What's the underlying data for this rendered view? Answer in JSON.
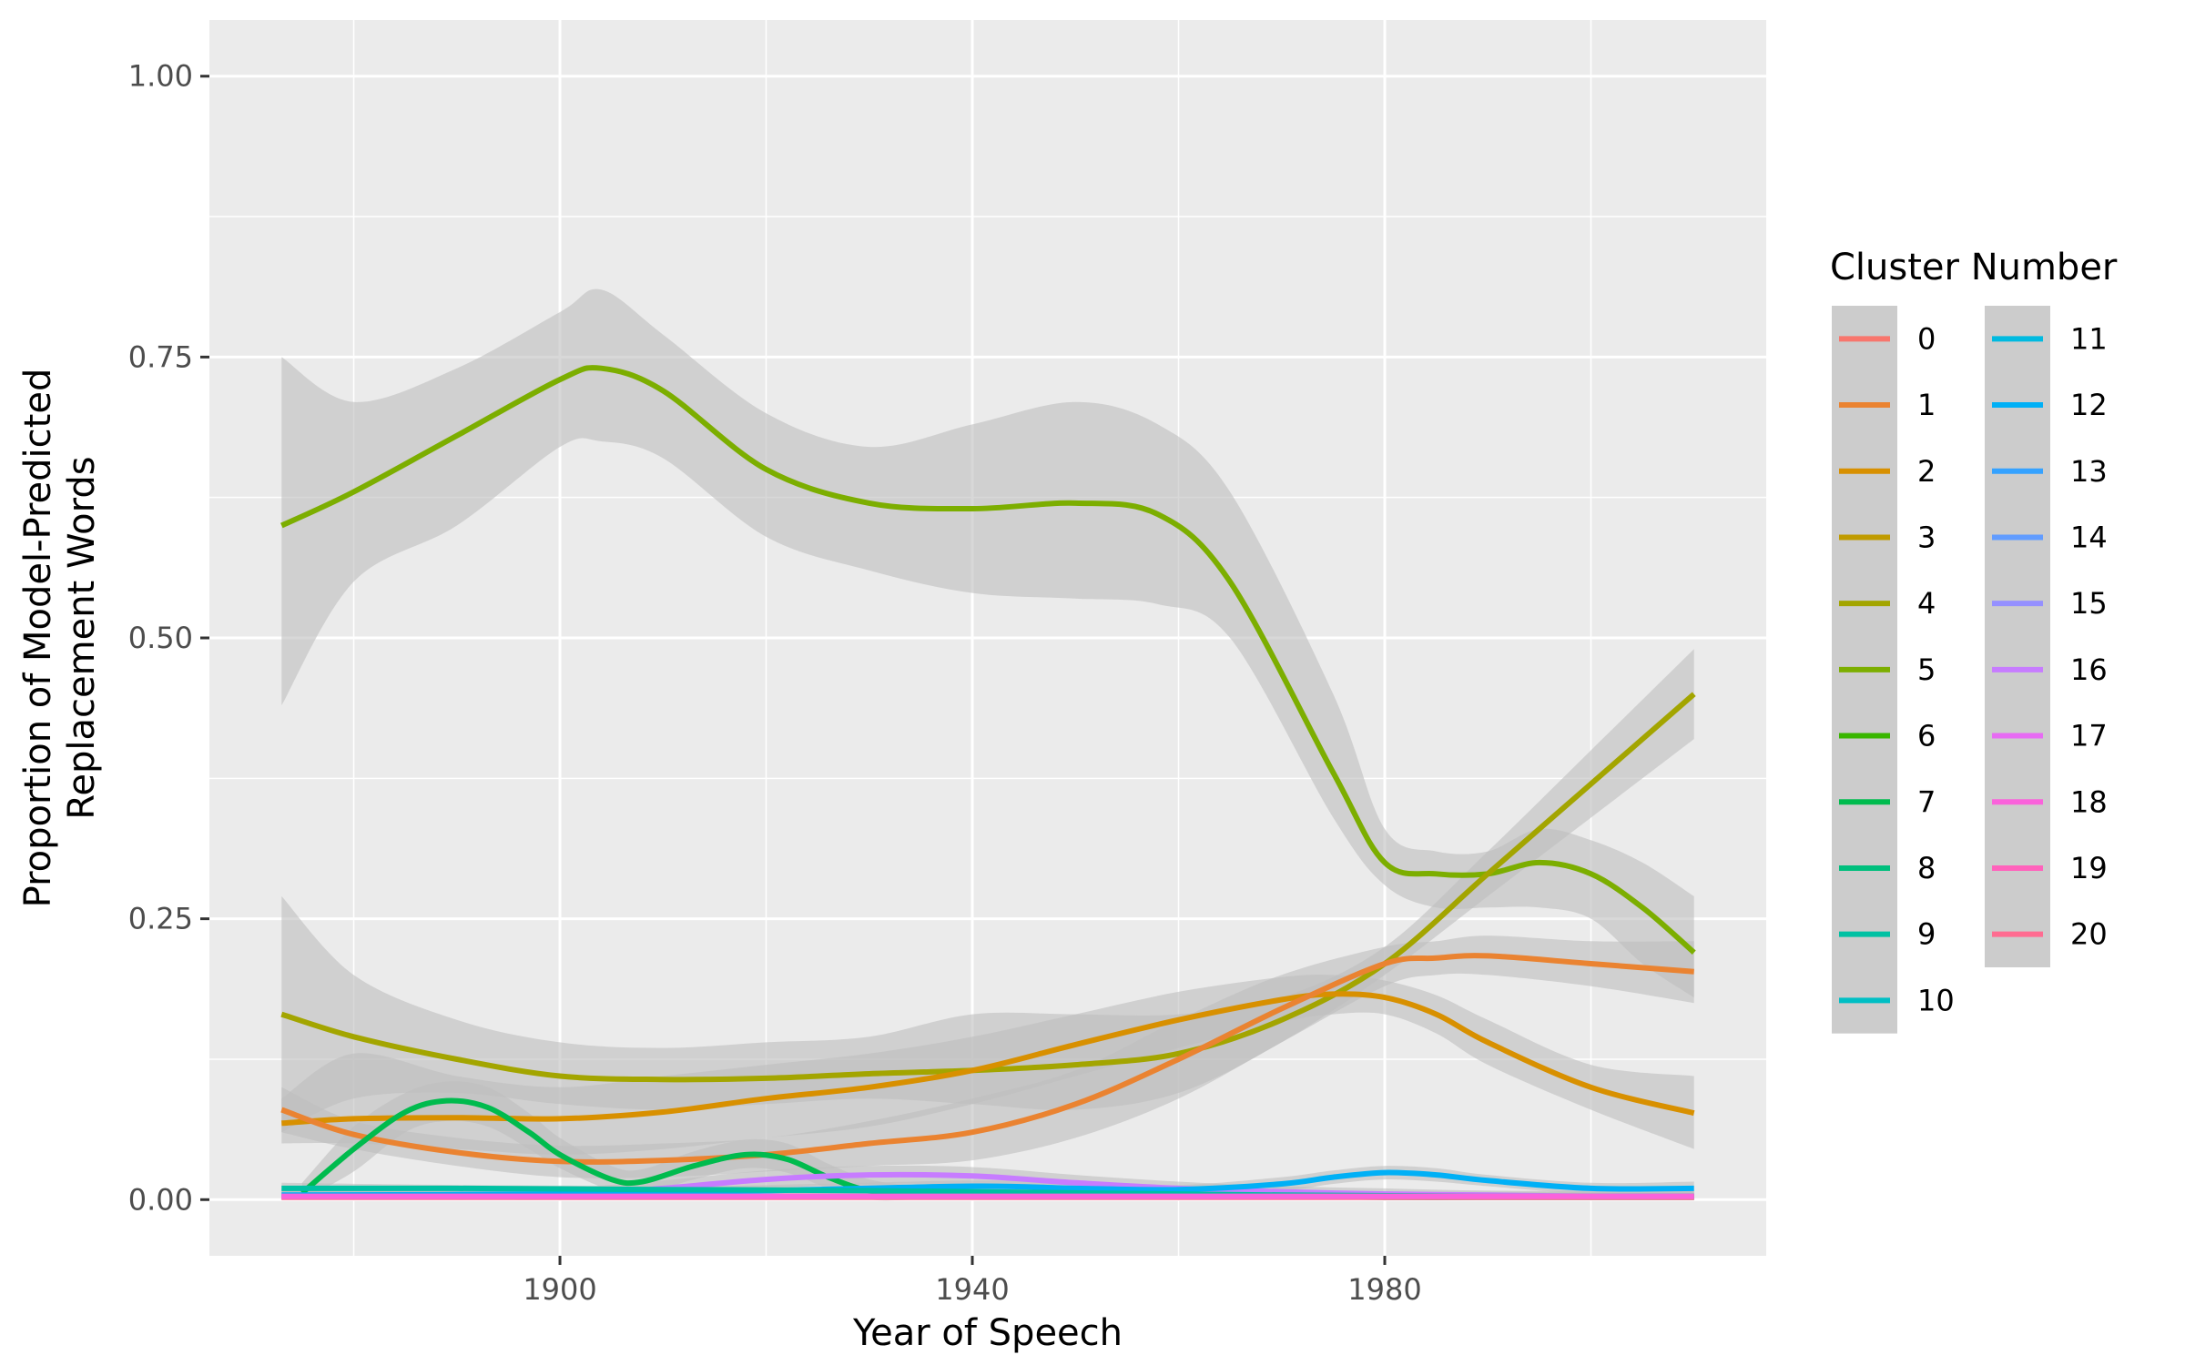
{
  "chart_data": {
    "type": "line",
    "title": "",
    "xlabel": "Year of Speech",
    "ylabel": [
      "Proportion of Model-Predicted",
      "Replacement Words"
    ],
    "xlim": [
      1866,
      2017
    ],
    "ylim": [
      -0.05,
      1.05
    ],
    "x_ticks": [
      1900,
      1940,
      1980
    ],
    "y_ticks": [
      0.0,
      0.25,
      0.5,
      0.75,
      1.0
    ],
    "y_tick_labels": [
      "0.00",
      "0.25",
      "0.50",
      "0.75",
      "1.00"
    ],
    "grid": true,
    "panel_background": "#ebebeb",
    "confidence_band_color": "#bebebe",
    "legend": {
      "title": "Cluster Number",
      "position": "right",
      "columns": 2,
      "entries": [
        {
          "label": "0",
          "color": "#F8766D"
        },
        {
          "label": "1",
          "color": "#EA8331"
        },
        {
          "label": "2",
          "color": "#D89000"
        },
        {
          "label": "3",
          "color": "#C09B00"
        },
        {
          "label": "4",
          "color": "#A3A500"
        },
        {
          "label": "5",
          "color": "#7CAE00"
        },
        {
          "label": "6",
          "color": "#39B600"
        },
        {
          "label": "7",
          "color": "#00BB4E"
        },
        {
          "label": "8",
          "color": "#00BF7D"
        },
        {
          "label": "9",
          "color": "#00C1A3"
        },
        {
          "label": "10",
          "color": "#00BFC4"
        },
        {
          "label": "11",
          "color": "#00BAE0"
        },
        {
          "label": "12",
          "color": "#00B0F6"
        },
        {
          "label": "13",
          "color": "#35A2FF"
        },
        {
          "label": "14",
          "color": "#619CFF"
        },
        {
          "label": "15",
          "color": "#9590FF"
        },
        {
          "label": "16",
          "color": "#C77CFF"
        },
        {
          "label": "17",
          "color": "#E76BF3"
        },
        {
          "label": "18",
          "color": "#FA62DB"
        },
        {
          "label": "19",
          "color": "#FF62BC"
        },
        {
          "label": "20",
          "color": "#FF6C91"
        }
      ]
    },
    "series": [
      {
        "cluster": "5",
        "color": "#7CAE00",
        "x": [
          1873,
          1880,
          1890,
          1900,
          1904,
          1910,
          1920,
          1930,
          1940,
          1950,
          1958,
          1965,
          1975,
          1980,
          1985,
          1990,
          1995,
          2000,
          2005,
          2010
        ],
        "y": [
          0.6,
          0.63,
          0.68,
          0.73,
          0.74,
          0.72,
          0.65,
          0.62,
          0.615,
          0.62,
          0.61,
          0.55,
          0.38,
          0.3,
          0.29,
          0.29,
          0.3,
          0.29,
          0.26,
          0.22
        ],
        "lower": [
          0.44,
          0.55,
          0.6,
          0.67,
          0.675,
          0.66,
          0.59,
          0.56,
          0.54,
          0.535,
          0.53,
          0.5,
          0.34,
          0.28,
          0.26,
          0.26,
          0.26,
          0.25,
          0.21,
          0.18
        ],
        "upper": [
          0.75,
          0.71,
          0.74,
          0.79,
          0.81,
          0.77,
          0.7,
          0.67,
          0.69,
          0.71,
          0.69,
          0.63,
          0.45,
          0.33,
          0.31,
          0.31,
          0.33,
          0.32,
          0.3,
          0.27
        ]
      },
      {
        "cluster": "4",
        "color": "#A3A500",
        "x": [
          1873,
          1880,
          1890,
          1900,
          1910,
          1920,
          1930,
          1940,
          1950,
          1960,
          1970,
          1980,
          1990,
          2000,
          2010
        ],
        "y": [
          0.165,
          0.145,
          0.125,
          0.11,
          0.107,
          0.108,
          0.112,
          0.115,
          0.12,
          0.13,
          0.16,
          0.21,
          0.29,
          0.37,
          0.45
        ],
        "lower": [
          0.06,
          0.09,
          0.095,
          0.085,
          0.08,
          0.085,
          0.09,
          0.085,
          0.08,
          0.095,
          0.14,
          0.2,
          0.27,
          0.34,
          0.41
        ],
        "upper": [
          0.27,
          0.2,
          0.16,
          0.14,
          0.135,
          0.14,
          0.145,
          0.165,
          0.165,
          0.165,
          0.18,
          0.225,
          0.31,
          0.4,
          0.49
        ]
      },
      {
        "cluster": "2",
        "color": "#D89000",
        "x": [
          1873,
          1880,
          1890,
          1900,
          1910,
          1920,
          1930,
          1940,
          1950,
          1960,
          1970,
          1975,
          1980,
          1985,
          1990,
          2000,
          2010
        ],
        "y": [
          0.068,
          0.072,
          0.073,
          0.072,
          0.078,
          0.09,
          0.1,
          0.115,
          0.138,
          0.16,
          0.178,
          0.183,
          0.18,
          0.165,
          0.14,
          0.1,
          0.077
        ],
        "lower": [
          0.05,
          0.05,
          0.045,
          0.04,
          0.045,
          0.055,
          0.065,
          0.085,
          0.11,
          0.135,
          0.158,
          0.165,
          0.165,
          0.148,
          0.12,
          0.08,
          0.045
        ],
        "upper": [
          0.09,
          0.13,
          0.11,
          0.1,
          0.11,
          0.12,
          0.13,
          0.145,
          0.165,
          0.185,
          0.198,
          0.2,
          0.195,
          0.182,
          0.16,
          0.12,
          0.11
        ]
      },
      {
        "cluster": "1",
        "color": "#EA8331",
        "x": [
          1873,
          1880,
          1890,
          1900,
          1910,
          1920,
          1930,
          1940,
          1950,
          1960,
          1970,
          1980,
          1985,
          1990,
          2000,
          2010
        ],
        "y": [
          0.08,
          0.058,
          0.042,
          0.034,
          0.035,
          0.04,
          0.05,
          0.06,
          0.085,
          0.125,
          0.17,
          0.21,
          0.215,
          0.217,
          0.21,
          0.203
        ],
        "lower": [
          0.06,
          0.045,
          0.03,
          0.02,
          0.02,
          0.025,
          0.03,
          0.035,
          0.055,
          0.09,
          0.14,
          0.19,
          0.2,
          0.2,
          0.19,
          0.175
        ],
        "upper": [
          0.1,
          0.07,
          0.055,
          0.048,
          0.05,
          0.055,
          0.07,
          0.09,
          0.115,
          0.16,
          0.2,
          0.225,
          0.23,
          0.235,
          0.23,
          0.23
        ]
      },
      {
        "cluster": "7",
        "color": "#00BB4E",
        "x": [
          1875,
          1880,
          1885,
          1889,
          1893,
          1897,
          1900,
          1905,
          1908,
          1913,
          1918,
          1922,
          1926,
          1930,
          1935,
          1940,
          1950,
          1960,
          1970,
          1980,
          1990,
          2000,
          2010
        ],
        "y": [
          0.006,
          0.045,
          0.078,
          0.088,
          0.082,
          0.06,
          0.04,
          0.018,
          0.016,
          0.03,
          0.04,
          0.036,
          0.02,
          0.008,
          0.005,
          0.004,
          0.003,
          0.003,
          0.003,
          0.002,
          0.002,
          0.002,
          0.002
        ],
        "lower": [
          0.0,
          0.025,
          0.06,
          0.07,
          0.065,
          0.045,
          0.028,
          0.008,
          0.005,
          0.018,
          0.028,
          0.024,
          0.01,
          0.0,
          0.0,
          0.0,
          0.0,
          0.0,
          0.0,
          0.0,
          0.0,
          0.0,
          0.0
        ],
        "upper": [
          0.015,
          0.065,
          0.095,
          0.105,
          0.1,
          0.077,
          0.055,
          0.03,
          0.027,
          0.043,
          0.053,
          0.05,
          0.032,
          0.018,
          0.012,
          0.01,
          0.008,
          0.008,
          0.008,
          0.007,
          0.007,
          0.007,
          0.008
        ]
      },
      {
        "cluster": "16",
        "color": "#C77CFF",
        "x": [
          1873,
          1890,
          1900,
          1910,
          1920,
          1930,
          1940,
          1950,
          1960,
          1970,
          1980,
          1990,
          2000,
          2010
        ],
        "y": [
          0.003,
          0.003,
          0.004,
          0.01,
          0.018,
          0.022,
          0.021,
          0.015,
          0.01,
          0.007,
          0.005,
          0.004,
          0.003,
          0.003
        ],
        "lower": [
          0.0,
          0.0,
          0.0,
          0.004,
          0.01,
          0.014,
          0.013,
          0.008,
          0.004,
          0.002,
          0.0,
          0.0,
          0.0,
          0.0
        ],
        "upper": [
          0.01,
          0.008,
          0.01,
          0.017,
          0.026,
          0.03,
          0.029,
          0.022,
          0.016,
          0.012,
          0.01,
          0.008,
          0.008,
          0.009
        ]
      },
      {
        "cluster": "12",
        "color": "#00B0F6",
        "x": [
          1873,
          1900,
          1920,
          1940,
          1950,
          1960,
          1970,
          1975,
          1980,
          1985,
          1990,
          2000,
          2010
        ],
        "y": [
          0.004,
          0.005,
          0.008,
          0.012,
          0.01,
          0.009,
          0.014,
          0.02,
          0.024,
          0.022,
          0.017,
          0.01,
          0.01
        ],
        "lower": [
          0.0,
          0.0,
          0.003,
          0.007,
          0.006,
          0.005,
          0.008,
          0.014,
          0.018,
          0.016,
          0.012,
          0.005,
          0.004
        ],
        "upper": [
          0.01,
          0.01,
          0.013,
          0.017,
          0.015,
          0.013,
          0.02,
          0.026,
          0.03,
          0.028,
          0.022,
          0.015,
          0.016
        ]
      },
      {
        "cluster": "9",
        "color": "#00C1A3",
        "x": [
          1873,
          1890,
          1910,
          1930,
          1950,
          1970,
          1990,
          2010
        ],
        "y": [
          0.01,
          0.01,
          0.009,
          0.008,
          0.006,
          0.004,
          0.003,
          0.003
        ],
        "lower": [
          0.006,
          0.007,
          0.006,
          0.005,
          0.003,
          0.001,
          0.0,
          0.0
        ],
        "upper": [
          0.015,
          0.013,
          0.012,
          0.011,
          0.009,
          0.007,
          0.006,
          0.006
        ]
      },
      {
        "cluster": "20",
        "color": "#FF6C91",
        "x": [
          1873,
          1900,
          1940,
          1980,
          2010
        ],
        "y": [
          0.002,
          0.002,
          0.002,
          0.002,
          0.002
        ],
        "lower": [
          0.0,
          0.0,
          0.0,
          0.0,
          0.0
        ],
        "upper": [
          0.005,
          0.004,
          0.004,
          0.004,
          0.005
        ]
      },
      {
        "cluster": "18",
        "color": "#FA62DB",
        "x": [
          1873,
          1940,
          2010
        ],
        "y": [
          0.003,
          0.003,
          0.003
        ],
        "lower": [
          0.0,
          0.0,
          0.0
        ],
        "upper": [
          0.006,
          0.006,
          0.006
        ]
      }
    ]
  }
}
